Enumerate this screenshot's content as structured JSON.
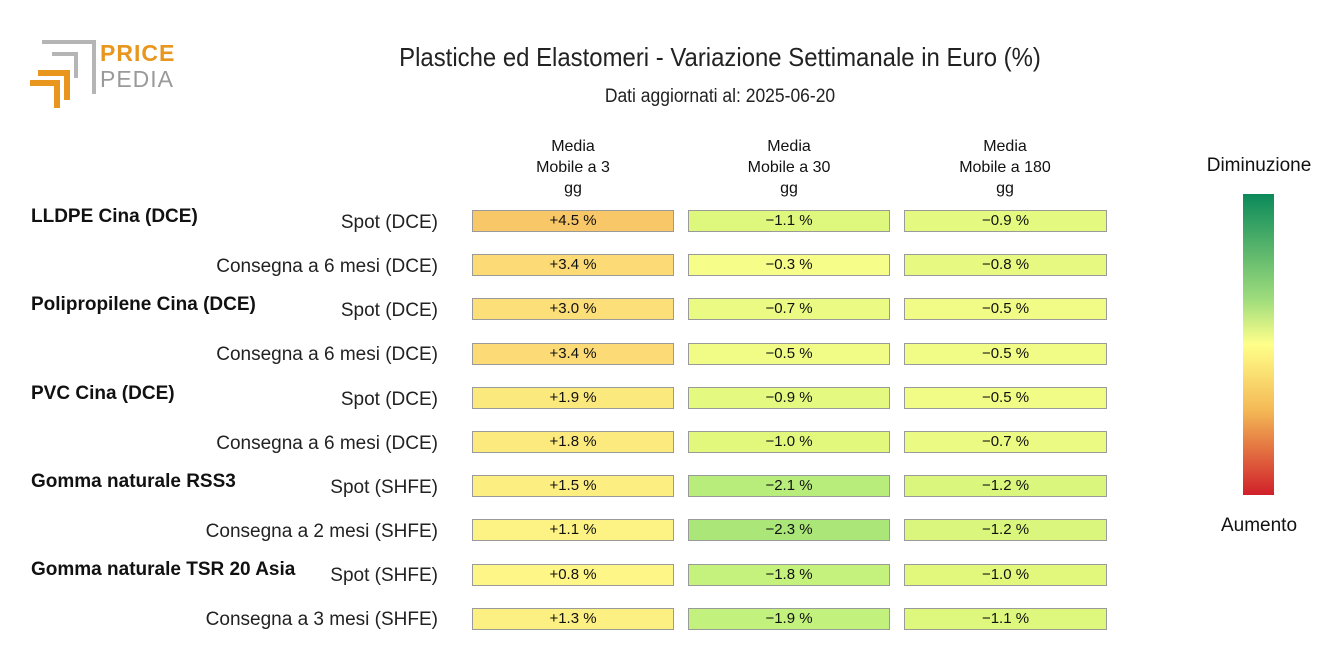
{
  "logo": {
    "price": "PRICE",
    "pedia": "PEDIA"
  },
  "colors": {
    "logo_orange": "#e8961e",
    "logo_gray": "#9a9a9a"
  },
  "chart_data": {
    "type": "table",
    "title": "Plastiche ed Elastomeri - Variazione Settimanale in Euro (%)",
    "subtitle": "Dati aggiornati al: 2025-06-20",
    "columns": [
      [
        "Media",
        "Mobile a 3",
        "gg"
      ],
      [
        "Media",
        "Mobile a 30",
        "gg"
      ],
      [
        "Media",
        "Mobile a 180",
        "gg"
      ]
    ],
    "groups": [
      {
        "name": "LLDPE Cina (DCE)",
        "rows": [
          {
            "label": "Spot (DCE)",
            "values": [
              4.5,
              -1.1,
              -0.9
            ],
            "texts": [
              "+4.5 %",
              "−1.1 %",
              "−0.9 %"
            ]
          },
          {
            "label": "Consegna a 6 mesi (DCE)",
            "values": [
              3.4,
              -0.3,
              -0.8
            ],
            "texts": [
              "+3.4 %",
              "−0.3 %",
              "−0.8 %"
            ]
          }
        ]
      },
      {
        "name": "Polipropilene Cina (DCE)",
        "rows": [
          {
            "label": "Spot (DCE)",
            "values": [
              3.0,
              -0.7,
              -0.5
            ],
            "texts": [
              "+3.0 %",
              "−0.7 %",
              "−0.5 %"
            ]
          },
          {
            "label": "Consegna a 6 mesi (DCE)",
            "values": [
              3.4,
              -0.5,
              -0.5
            ],
            "texts": [
              "+3.4 %",
              "−0.5 %",
              "−0.5 %"
            ]
          }
        ]
      },
      {
        "name": "PVC Cina (DCE)",
        "rows": [
          {
            "label": "Spot (DCE)",
            "values": [
              1.9,
              -0.9,
              -0.5
            ],
            "texts": [
              "+1.9 %",
              "−0.9 %",
              "−0.5 %"
            ]
          },
          {
            "label": "Consegna a 6 mesi (DCE)",
            "values": [
              1.8,
              -1.0,
              -0.7
            ],
            "texts": [
              "+1.8 %",
              "−1.0 %",
              "−0.7 %"
            ]
          }
        ]
      },
      {
        "name": "Gomma naturale RSS3",
        "rows": [
          {
            "label": "Spot (SHFE)",
            "values": [
              1.5,
              -2.1,
              -1.2
            ],
            "texts": [
              "+1.5 %",
              "−2.1 %",
              "−1.2 %"
            ]
          },
          {
            "label": "Consegna a 2 mesi (SHFE)",
            "values": [
              1.1,
              -2.3,
              -1.2
            ],
            "texts": [
              "+1.1 %",
              "−2.3 %",
              "−1.2 %"
            ]
          }
        ]
      },
      {
        "name": "Gomma naturale TSR 20 Asia",
        "rows": [
          {
            "label": "Spot (SHFE)",
            "values": [
              0.8,
              -1.8,
              -1.0
            ],
            "texts": [
              "+0.8 %",
              "−1.8 %",
              "−1.0 %"
            ]
          },
          {
            "label": "Consegna a 3 mesi (SHFE)",
            "values": [
              1.3,
              -1.9,
              -1.1
            ],
            "texts": [
              "+1.3 %",
              "−1.9 %",
              "−1.1 %"
            ]
          }
        ]
      }
    ],
    "color_scale": {
      "top_label": "Diminuzione",
      "bottom_label": "Aumento",
      "colors": {
        "strong_decrease": "#0b8a5a",
        "decrease": "#9fdc7c",
        "neutral": "#ffff8a",
        "increase": "#f4b855",
        "strong_increase": "#d0202a"
      }
    }
  }
}
